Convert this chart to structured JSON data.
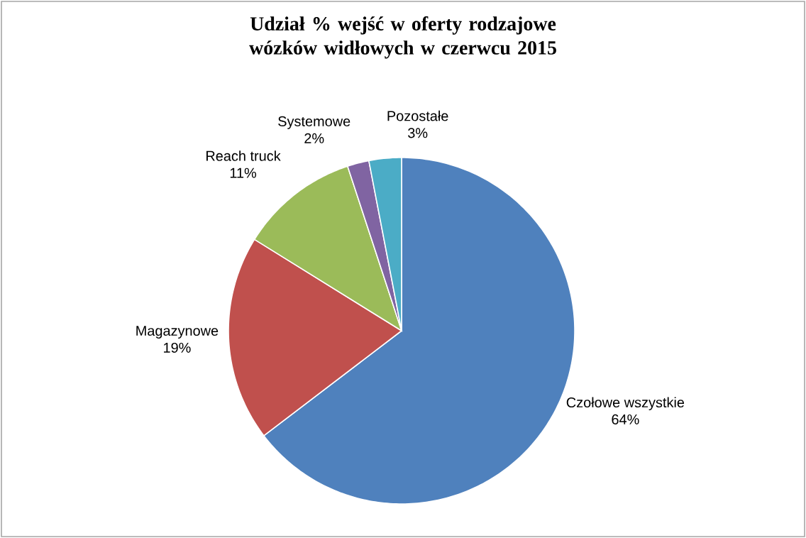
{
  "chart_data": {
    "type": "pie",
    "title": "Udział % wejść w oferty rodzajowe wózków widłowych w czerwcu 2015",
    "categories": [
      "Czołowe  wszystkie",
      "Magazynowe",
      "Reach truck",
      "Systemowe",
      "Pozostałe"
    ],
    "values": [
      64,
      19,
      11,
      2,
      3
    ],
    "value_labels": [
      "64%",
      "19%",
      "11%",
      "2%",
      "3%"
    ],
    "colors": [
      "#4f81bd",
      "#c0504d",
      "#9bbb59",
      "#8064a2",
      "#4bacc6"
    ],
    "legend": false
  }
}
